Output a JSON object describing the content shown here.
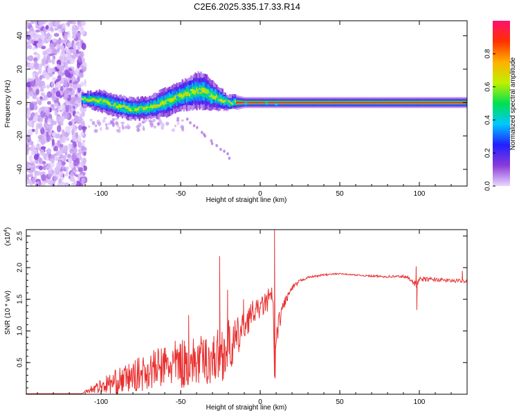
{
  "chart_data": [
    {
      "type": "heatmap",
      "title": "C2E6.2025.335.17.33.R14",
      "xlabel": "Height of straight line (km)",
      "ylabel": "Frequency (Hz)",
      "xlim": [
        -147,
        130
      ],
      "ylim": [
        -50,
        49
      ],
      "x_ticks": [
        -100,
        -50,
        0,
        50,
        100
      ],
      "y_ticks": [
        -40,
        -20,
        0,
        20,
        40
      ],
      "colorbar": {
        "label": "Normalized spectral amplitude",
        "range": [
          0,
          1
        ],
        "ticks": [
          0.0,
          0.2,
          0.4,
          0.6,
          0.8
        ],
        "tick_labels": [
          "0.0",
          "0.2",
          "0.4",
          "0.6",
          "0.8"
        ],
        "colors": [
          "#e8d8ff",
          "#8a3ad8",
          "#2020ff",
          "#00c8ff",
          "#00e050",
          "#c0f000",
          "#ffb000",
          "#ff3000",
          "#ff1070"
        ]
      },
      "ridge": {
        "x": [
          -110,
          -100,
          -90,
          -80,
          -70,
          -60,
          -50,
          -40,
          -35,
          -30,
          -25,
          -20,
          -15,
          -10,
          0,
          10,
          20,
          60,
          100,
          130
        ],
        "freq": [
          2,
          1,
          -2,
          -4,
          -3,
          0,
          4,
          7,
          7,
          4,
          2,
          0,
          0,
          0,
          0,
          0,
          0,
          0,
          0,
          0
        ],
        "width_hz": [
          2,
          3,
          3,
          3,
          3,
          4,
          4,
          5,
          5,
          4,
          3,
          2,
          2,
          1.5,
          1.5,
          1.5,
          1.5,
          1.5,
          1.5,
          1.5
        ]
      },
      "noise_region_x": [
        -147,
        -110
      ],
      "faint_streak": {
        "x": [
          -45,
          -20
        ],
        "freq": [
          -10,
          -33
        ]
      }
    },
    {
      "type": "line",
      "xlabel": "Height of straight line (km)",
      "ylabel": "SNR (10 * v/v)",
      "multiplier_label": "(x10",
      "multiplier_exp": "4",
      "multiplier_close": ")",
      "xlim": [
        -147,
        130
      ],
      "ylim": [
        0,
        2.6
      ],
      "x_ticks": [
        -100,
        -50,
        0,
        50,
        100
      ],
      "y_ticks": [
        0.5,
        1.0,
        1.5,
        2.0,
        2.5
      ],
      "y_tick_labels": [
        "0.5",
        "1.0",
        "1.5",
        "2.0",
        "2.5"
      ],
      "color": "#e83030",
      "envelope": {
        "x": [
          -147,
          -112,
          -108,
          -100,
          -90,
          -80,
          -70,
          -60,
          -50,
          -40,
          -30,
          -25,
          -20,
          -15,
          -10,
          -5,
          0,
          5,
          8,
          9,
          10,
          12,
          15,
          20,
          25,
          30,
          40,
          50,
          60,
          70,
          80,
          90,
          95,
          98,
          100,
          110,
          120,
          130
        ],
        "base": [
          0.01,
          0.01,
          0.05,
          0.08,
          0.12,
          0.18,
          0.25,
          0.3,
          0.32,
          0.35,
          0.4,
          0.45,
          0.55,
          0.7,
          1.0,
          1.2,
          1.3,
          1.4,
          1.5,
          0.25,
          0.8,
          1.1,
          1.4,
          1.65,
          1.78,
          1.84,
          1.88,
          1.9,
          1.88,
          1.86,
          1.85,
          1.85,
          1.8,
          1.7,
          1.8,
          1.8,
          1.78,
          1.78
        ],
        "spread": [
          0.0,
          0.0,
          0.1,
          0.25,
          0.4,
          0.5,
          0.6,
          0.7,
          0.8,
          0.8,
          0.8,
          0.9,
          0.9,
          0.7,
          0.5,
          0.4,
          0.3,
          0.4,
          0.3,
          0.1,
          0.3,
          0.3,
          0.2,
          0.1,
          0.05,
          0.03,
          0.03,
          0.02,
          0.02,
          0.03,
          0.04,
          0.05,
          0.08,
          0.1,
          0.08,
          0.06,
          0.06,
          0.06
        ]
      },
      "spikes": [
        {
          "x": -25.5,
          "y": 2.18
        },
        {
          "x": -20.5,
          "y": 1.65
        },
        {
          "x": -45,
          "y": 1.25
        },
        {
          "x": -10.5,
          "y": 1.5
        },
        {
          "x": 9,
          "y": 2.62
        },
        {
          "x": 9.4,
          "y": 0.25
        },
        {
          "x": 98,
          "y": 2.02
        },
        {
          "x": 98.4,
          "y": 1.33
        },
        {
          "x": 127,
          "y": 1.95
        }
      ]
    }
  ]
}
